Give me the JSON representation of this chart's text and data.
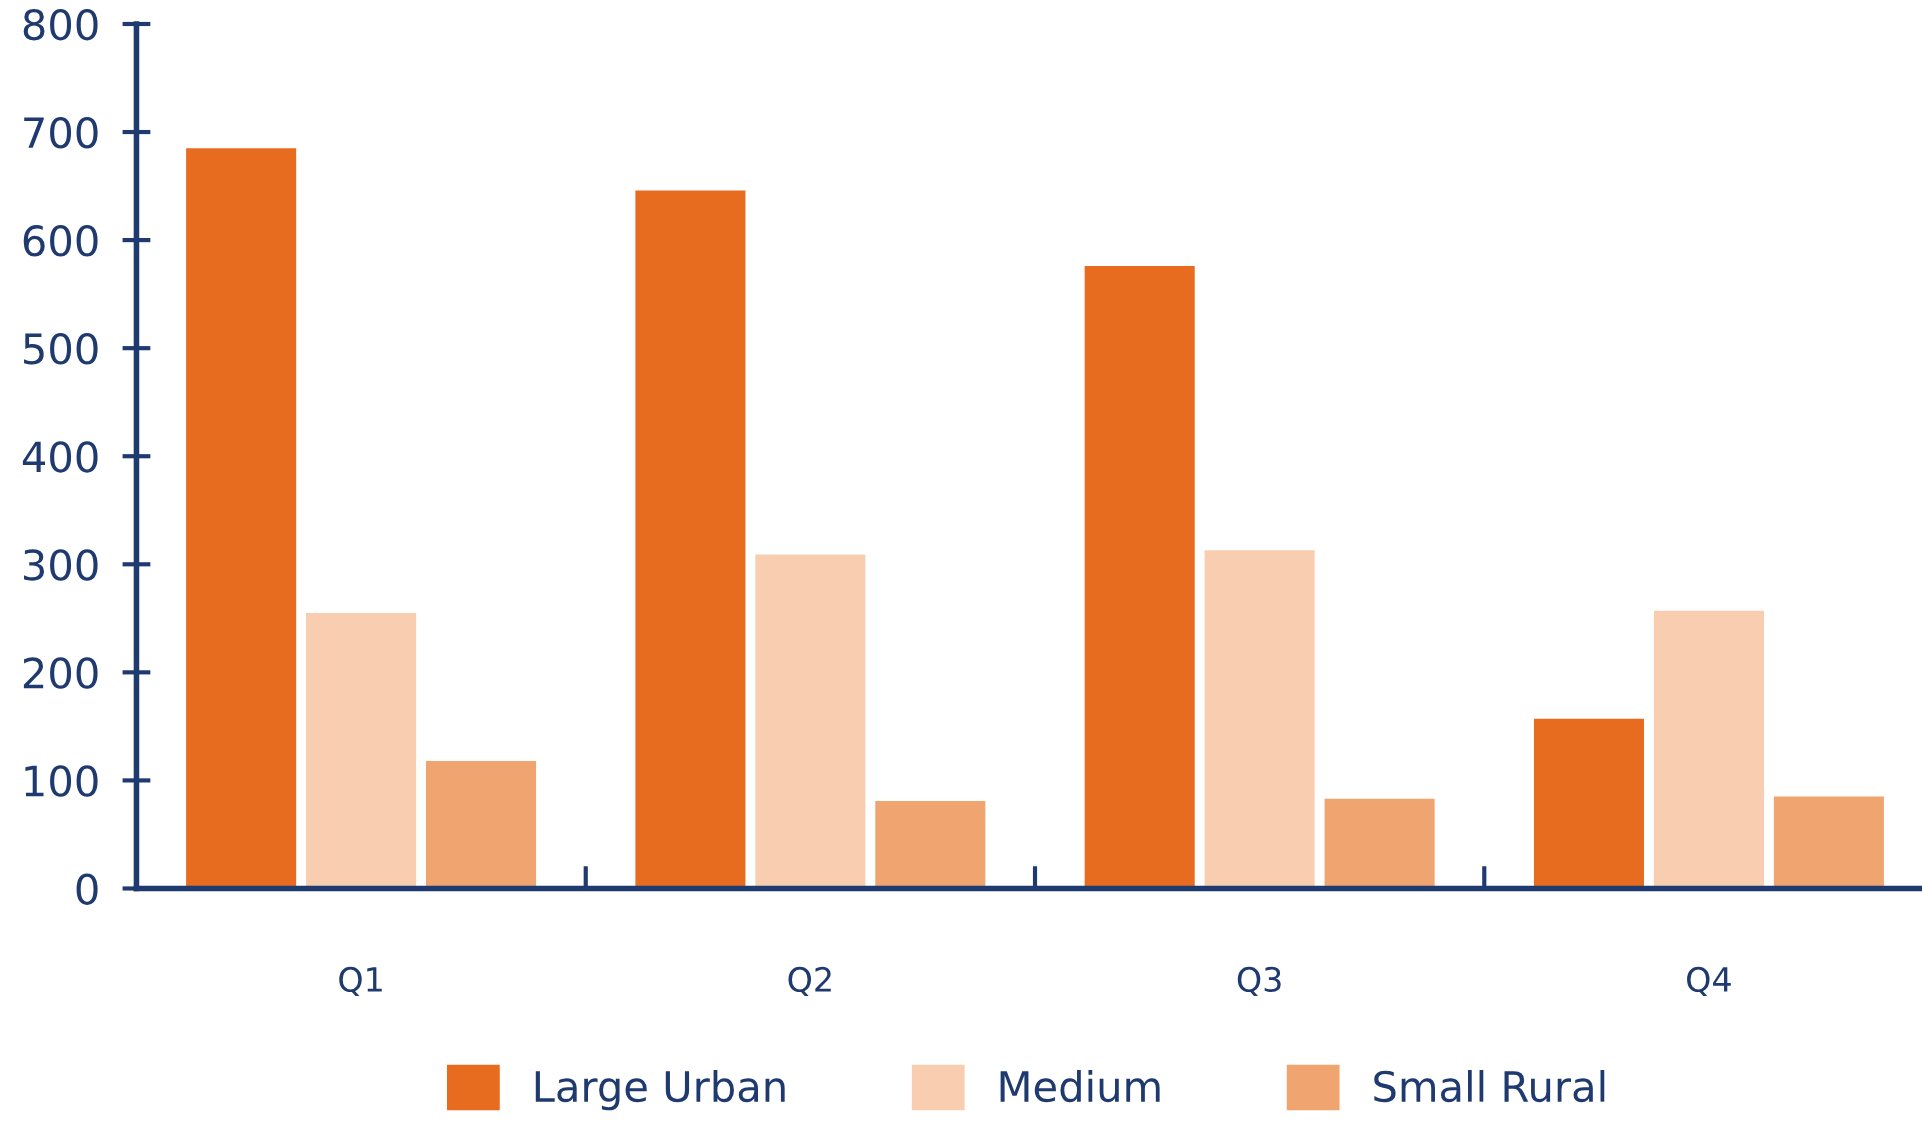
{
  "chart_data": {
    "type": "bar",
    "categories": [
      "Q1",
      "Q2",
      "Q3",
      "Q4"
    ],
    "series": [
      {
        "name": "Large Urban",
        "color": "#e86c1f",
        "values": [
          685,
          646,
          576,
          157
        ]
      },
      {
        "name": "Medium",
        "color": "#f9cdb0",
        "values": [
          255,
          309,
          313,
          257
        ]
      },
      {
        "name": "Small Rural",
        "color": "#f0a46f",
        "values": [
          118,
          81,
          83,
          85
        ]
      }
    ],
    "ylim": [
      0,
      800
    ],
    "yticks": [
      0,
      100,
      200,
      300,
      400,
      500,
      600,
      700,
      800
    ],
    "grid": false,
    "legend": "bottom"
  }
}
